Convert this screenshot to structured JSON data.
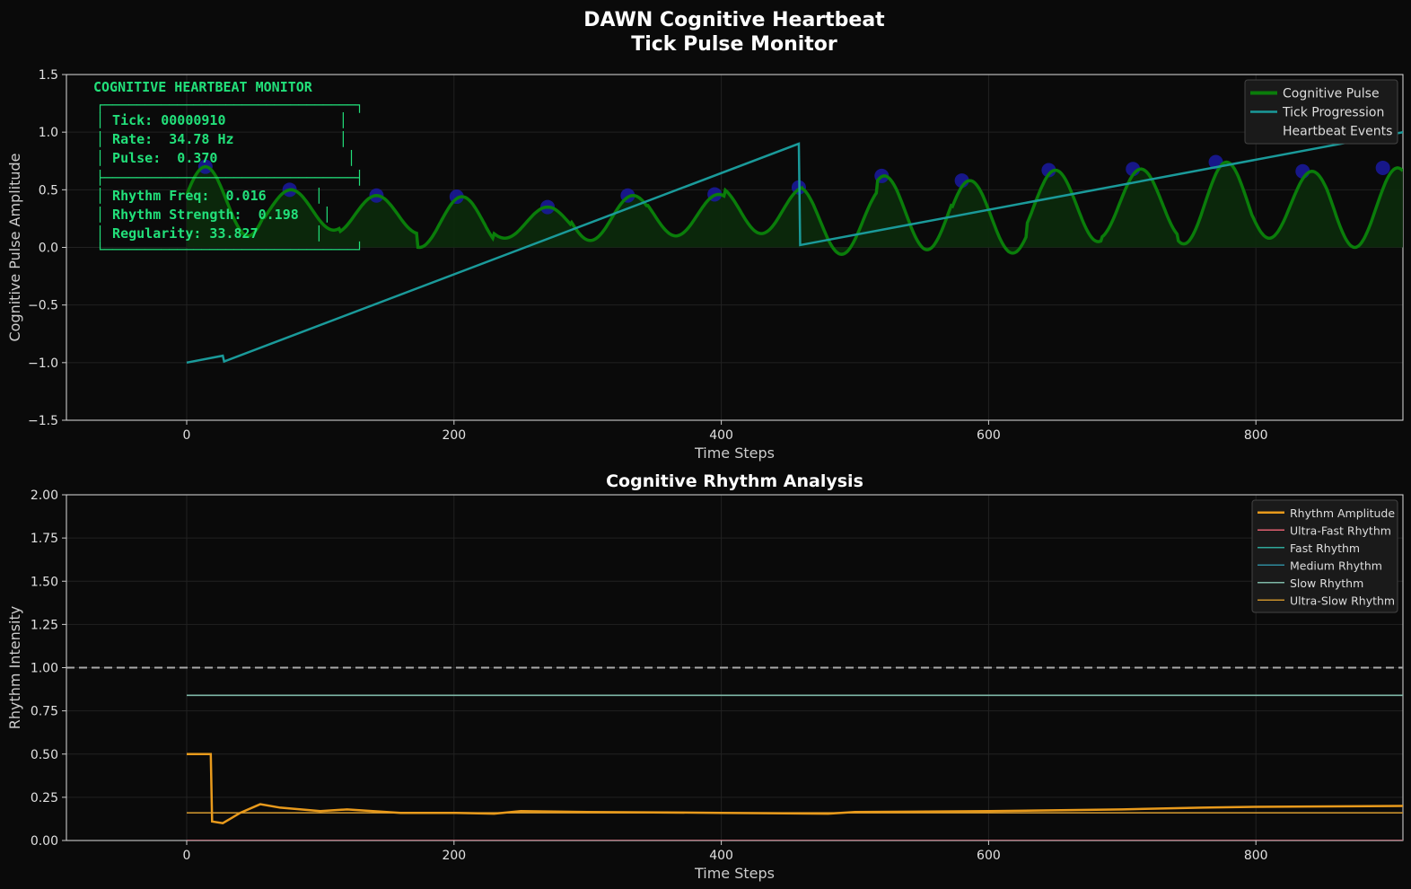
{
  "figure_title": [
    "DAWN Cognitive Heartbeat",
    "Tick Pulse Monitor"
  ],
  "colors": {
    "background": "#0a0a0a",
    "grid": "#222222",
    "axis": "#cccccc",
    "pulse": "#0a7d0a",
    "pulse_fill": "#0b2a0b",
    "tick": "#1a9a9a",
    "events": "#1a1aa0",
    "monitor_text": "#22e07a",
    "rhythm_amp": "#e89a1c",
    "ultra_fast": "#e06070",
    "fast": "#2fa89a",
    "medium": "#2f8a9c",
    "slow": "#7fb8a8",
    "ultra_slow": "#c8902c",
    "threshold": "#aaaaaa"
  },
  "monitor": {
    "header": "COGNITIVE HEARTBEAT MONITOR",
    "lines": [
      "┌───────────────────────────────┐",
      "│ Tick: 00000910              │",
      "│ Rate:  34.78 Hz             │",
      "│ Pulse:  0.370                │",
      "├───────────────────────────────┤",
      "│ Rhythm Freq:  0.016      │",
      "│ Rhythm Strength:  0.198   │",
      "│ Regularity: 33.827       │",
      "└───────────────────────────────┘"
    ]
  },
  "chart_data": [
    {
      "type": "line",
      "title": "",
      "xlabel": "Time Steps",
      "ylabel": "Cognitive Pulse Amplitude",
      "xlim": [
        -90,
        910
      ],
      "ylim": [
        -1.5,
        1.5
      ],
      "xticks": [
        0,
        200,
        400,
        600,
        800
      ],
      "yticks": [
        -1.5,
        -1.0,
        -0.5,
        0.0,
        0.5,
        1.0,
        1.5
      ],
      "xtick_labels": [
        "0",
        "200",
        "400",
        "600",
        "800"
      ],
      "ytick_labels": [
        "−1.5",
        "−1.0",
        "−0.5",
        "0.0",
        "0.5",
        "1.0",
        "1.5"
      ],
      "grid": true,
      "legend_position": "top-right",
      "series": [
        {
          "name": "Cognitive Pulse",
          "style": "filled-line",
          "period": 64,
          "phase_peak": 14,
          "segments": [
            {
              "x": [
                0,
                460
              ],
              "peaks": [
                0.7,
                0.5,
                0.45,
                0.44,
                0.35,
                0.45,
                0.46,
                0.52
              ],
              "troughs": [
                0.1,
                0.15,
                0.12,
                0.0,
                0.08,
                0.06,
                0.1,
                0.12
              ]
            },
            {
              "x": [
                460,
                910
              ],
              "peaks": [
                0.52,
                0.62,
                0.58,
                0.67,
                0.68,
                0.74,
                0.66,
                0.69
              ],
              "troughs": [
                -0.06,
                -0.02,
                -0.05,
                0.05,
                0.08,
                0.03,
                0.08,
                0.0
              ]
            }
          ]
        },
        {
          "name": "Tick Progression",
          "points": [
            [
              0,
              -1.0
            ],
            [
              27,
              -0.94
            ],
            [
              28,
              -0.99
            ],
            [
              458,
              0.9
            ],
            [
              459,
              0.02
            ],
            [
              910,
              1.0
            ]
          ]
        },
        {
          "name": "Heartbeat Events",
          "style": "markers",
          "x": [
            14,
            77,
            142,
            202,
            270,
            330,
            395,
            458,
            520,
            580,
            645,
            708,
            770,
            835,
            895
          ],
          "y": [
            0.7,
            0.5,
            0.45,
            0.44,
            0.35,
            0.45,
            0.46,
            0.52,
            0.62,
            0.58,
            0.67,
            0.68,
            0.74,
            0.66,
            0.69
          ]
        }
      ]
    },
    {
      "type": "line",
      "title": "Cognitive Rhythm Analysis",
      "xlabel": "Time Steps",
      "ylabel": "Rhythm Intensity",
      "xlim": [
        -90,
        910
      ],
      "ylim": [
        0.0,
        2.0
      ],
      "xticks": [
        0,
        200,
        400,
        600,
        800
      ],
      "yticks": [
        0.0,
        0.25,
        0.5,
        0.75,
        1.0,
        1.25,
        1.5,
        1.75,
        2.0
      ],
      "xtick_labels": [
        "0",
        "200",
        "400",
        "600",
        "800"
      ],
      "ytick_labels": [
        "0.00",
        "0.25",
        "0.50",
        "0.75",
        "1.00",
        "1.25",
        "1.50",
        "1.75",
        "2.00"
      ],
      "grid": true,
      "legend_position": "top-right",
      "threshold_line": 1.0,
      "series": [
        {
          "name": "Rhythm Amplitude",
          "points": [
            [
              0,
              0.5
            ],
            [
              18,
              0.5
            ],
            [
              19,
              0.11
            ],
            [
              27,
              0.1
            ],
            [
              40,
              0.16
            ],
            [
              55,
              0.21
            ],
            [
              70,
              0.19
            ],
            [
              100,
              0.17
            ],
            [
              120,
              0.18
            ],
            [
              160,
              0.16
            ],
            [
              200,
              0.16
            ],
            [
              230,
              0.155
            ],
            [
              250,
              0.17
            ],
            [
              300,
              0.165
            ],
            [
              400,
              0.16
            ],
            [
              480,
              0.155
            ],
            [
              500,
              0.165
            ],
            [
              600,
              0.17
            ],
            [
              700,
              0.18
            ],
            [
              760,
              0.19
            ],
            [
              800,
              0.195
            ],
            [
              910,
              0.2
            ]
          ]
        },
        {
          "name": "Ultra-Fast Rhythm",
          "points": [
            [
              0,
              0.0
            ],
            [
              910,
              0.0
            ]
          ]
        },
        {
          "name": "Fast Rhythm",
          "points": [
            [
              0,
              0.0
            ],
            [
              910,
              0.0
            ]
          ]
        },
        {
          "name": "Medium Rhythm",
          "points": [
            [
              0,
              0.0
            ],
            [
              910,
              0.0
            ]
          ]
        },
        {
          "name": "Slow Rhythm",
          "points": [
            [
              0,
              0.84
            ],
            [
              910,
              0.84
            ]
          ]
        },
        {
          "name": "Ultra-Slow Rhythm",
          "points": [
            [
              0,
              0.16
            ],
            [
              910,
              0.16
            ]
          ]
        }
      ]
    }
  ]
}
